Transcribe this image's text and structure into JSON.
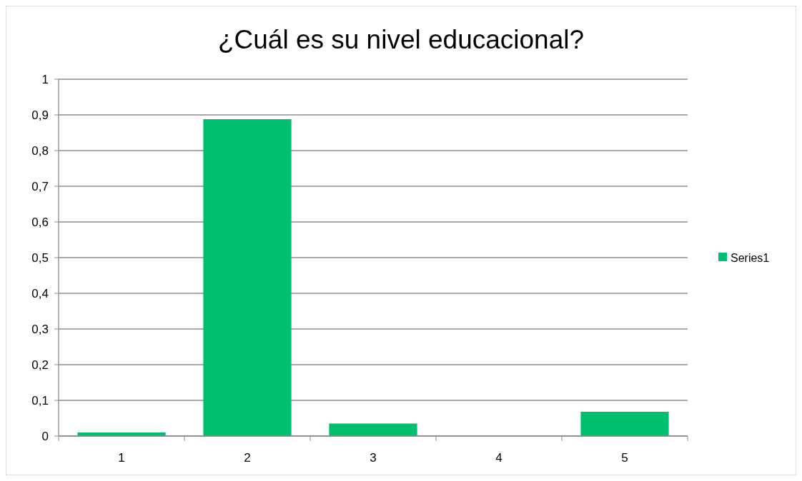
{
  "chart_data": {
    "type": "bar",
    "title": "¿Cuál es su nivel educacional?",
    "categories": [
      "1",
      "2",
      "3",
      "4",
      "5"
    ],
    "series": [
      {
        "name": "Series1",
        "color": "#00bf6f",
        "values": [
          0.01,
          0.888,
          0.035,
          0,
          0.068
        ]
      }
    ],
    "ylim": [
      0,
      1
    ],
    "yticks": [
      0,
      {
        "value": 0.1,
        "label": "0,1"
      },
      {
        "value": 0.2,
        "label": "0,2"
      },
      {
        "value": 0.3,
        "label": "0,3"
      },
      {
        "value": 0.4,
        "label": "0,4"
      },
      {
        "value": 0.5,
        "label": "0,5"
      },
      {
        "value": 0.6,
        "label": "0,6"
      },
      {
        "value": 0.7,
        "label": "0,7"
      },
      {
        "value": 0.8,
        "label": "0,8"
      },
      {
        "value": 0.9,
        "label": "0,9"
      },
      1
    ],
    "grid": "y",
    "legend": "right"
  }
}
